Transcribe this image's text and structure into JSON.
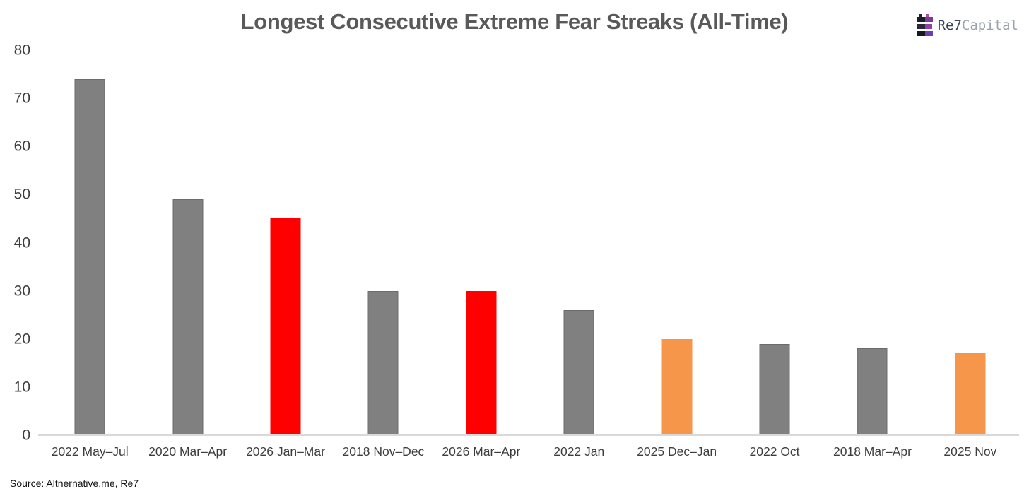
{
  "chart_data": {
    "type": "bar",
    "title": "Longest Consecutive Extreme Fear Streaks (All-Time)",
    "categories": [
      "2022 May–Jul",
      "2020 Mar–Apr",
      "2026 Jan–Mar",
      "2018 Nov–Dec",
      "2026 Mar–Apr",
      "2022 Jan",
      "2025 Dec–Jan",
      "2022 Oct",
      "2018 Mar–Apr",
      "2025 Nov"
    ],
    "values": [
      74,
      49,
      45,
      30,
      30,
      26,
      20,
      19,
      18,
      17
    ],
    "bar_colors": [
      "#808080",
      "#808080",
      "#FF0000",
      "#808080",
      "#FF0000",
      "#808080",
      "#F5964A",
      "#808080",
      "#808080",
      "#F5964A"
    ],
    "xlabel": "",
    "ylabel": "",
    "ylim": [
      0,
      80
    ],
    "yticks": [
      0,
      10,
      20,
      30,
      40,
      50,
      60,
      70,
      80
    ],
    "grid": false,
    "legend": false
  },
  "brand": {
    "name_primary": "Re7",
    "name_secondary": "Capital",
    "icon": "re7-stacked-bars-logo",
    "icon_colors": {
      "dark": "#1b1b26",
      "purple": "#7a3b98",
      "magenta": "#b14a9e"
    }
  },
  "source": "Source: Altnernative.me, Re7",
  "colors": {
    "bar_default": "#808080",
    "bar_highlight_red": "#FF0000",
    "bar_highlight_orange": "#F5964A",
    "title_text": "#595959",
    "axis_text": "#3d3d3d",
    "axis_line": "#d9d9d9",
    "background": "#ffffff"
  }
}
